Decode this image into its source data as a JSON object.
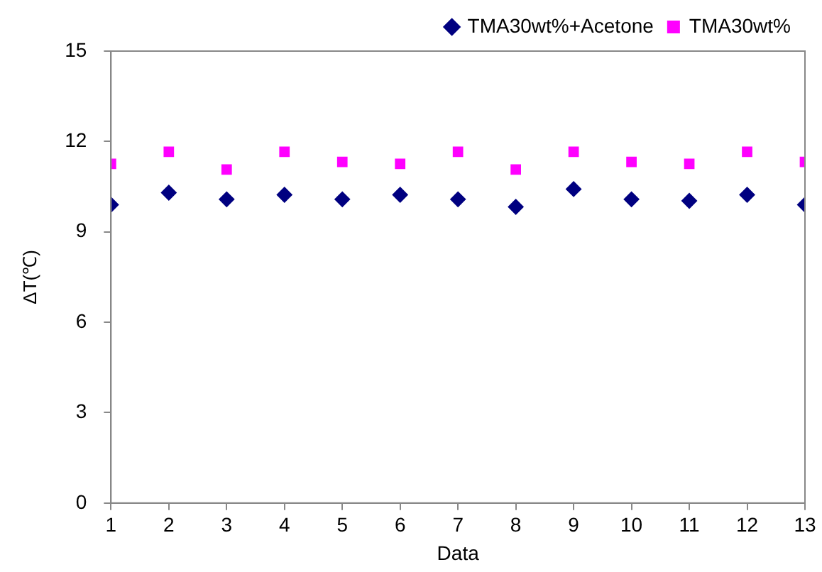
{
  "chart_data": {
    "type": "scatter",
    "xlabel": "Data",
    "ylabel": "ΔT(℃)",
    "x": [
      1,
      2,
      3,
      4,
      5,
      6,
      7,
      8,
      9,
      10,
      11,
      12,
      13
    ],
    "xlim": [
      1,
      13
    ],
    "xticks": [
      1,
      2,
      3,
      4,
      5,
      6,
      7,
      8,
      9,
      10,
      11,
      12,
      13
    ],
    "ylim": [
      0,
      15
    ],
    "yticks": [
      0,
      3,
      6,
      9,
      12,
      15
    ],
    "grid": false,
    "legend": "top right",
    "series": [
      {
        "name": "TMA30wt%+Acetone",
        "color": "#000080",
        "marker": "diamond",
        "values": [
          9.9,
          10.3,
          10.08,
          10.23,
          10.08,
          10.23,
          10.08,
          9.83,
          10.42,
          10.08,
          10.03,
          10.23,
          9.9
        ]
      },
      {
        "name": "TMA30wt%",
        "color": "#ff00ff",
        "marker": "square",
        "values": [
          11.26,
          11.66,
          11.07,
          11.66,
          11.32,
          11.26,
          11.66,
          11.07,
          11.66,
          11.32,
          11.26,
          11.66,
          11.32
        ]
      }
    ]
  }
}
